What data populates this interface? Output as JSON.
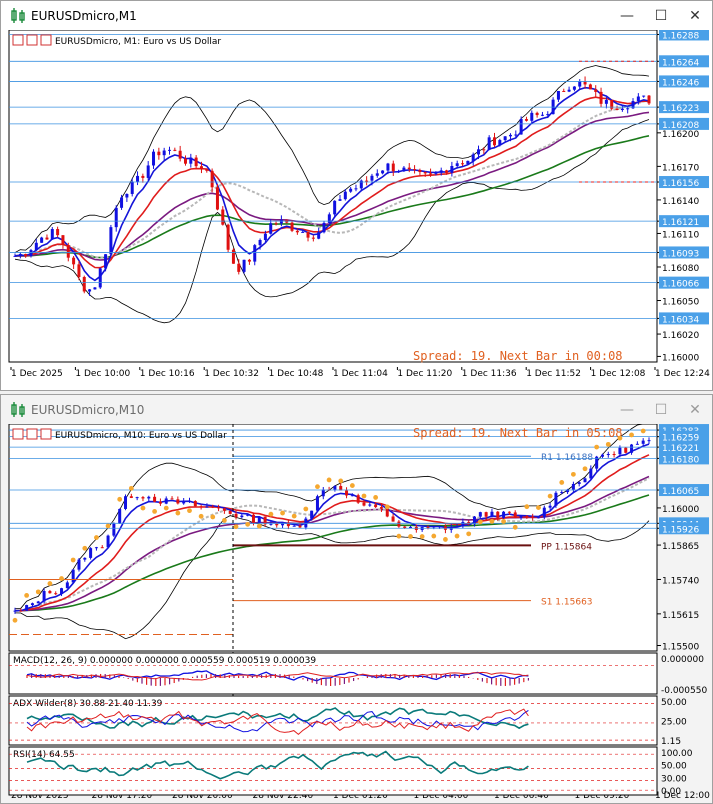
{
  "window1": {
    "title": "EURUSDmicro,M1",
    "header": "EURUSDmicro, M1:  Euro vs US Dollar",
    "spread_text": "Spread: 19. Next Bar in 00:08",
    "price_ticks": [
      "1.16288",
      "1.16264",
      "1.16246",
      "1.16223",
      "1.16208",
      "1.16200",
      "1.16170",
      "1.16156",
      "1.16140",
      "1.16121",
      "1.16110",
      "1.16093",
      "1.16080",
      "1.16066",
      "1.16050",
      "1.16034",
      "1.16020",
      "1.16000"
    ],
    "time_labels": [
      "1 Dec 2025",
      "1 Dec 10:00",
      "1 Dec 10:16",
      "1 Dec 10:32",
      "1 Dec 10:48",
      "1 Dec 11:04",
      "1 Dec 11:20",
      "1 Dec 11:36",
      "1 Dec 11:52",
      "1 Dec 12:08",
      "1 Dec 12:24"
    ]
  },
  "window2": {
    "title": "EURUSDmicro,M10",
    "header": "EURUSDmicro, M10:  Euro vs US Dollar",
    "spread_text": "Spread: 19. Next Bar in 05:08",
    "price_ticks": [
      "1.16283",
      "1.16259",
      "1.16221",
      "1.16180",
      "1.16065",
      "1.16000",
      "1.15944",
      "1.15926",
      "1.15865",
      "1.15740",
      "1.15615",
      "1.15500"
    ],
    "pivot_labels": {
      "r1": "R1 1.16188",
      "pp": "PP 1.15864",
      "s1": "S1 1.15663"
    },
    "macd_label": "MACD(12, 26, 9) 0.000000 0.000000 0.000559 0.000519 0.000039",
    "macd_ticks": [
      "0.000000",
      "-0.000550"
    ],
    "adx_label": "ADX Wilder(8) 30.88 21.40 11.39",
    "adx_ticks": [
      "50.00",
      "25.00",
      "1.15"
    ],
    "rsi_label": "RSI(14) 64.55",
    "rsi_ticks": [
      "100.00",
      "50.00",
      "30.00",
      "0.00"
    ],
    "time_labels": [
      "28 Nov 2025",
      "28 Nov 17:20",
      "28 Nov 20:00",
      "28 Nov 22:40",
      "1 Dec 01:20",
      "1 Dec 04:00",
      "1 Dec 06:40",
      "1 Dec 09:20",
      "1 Dec 12:00"
    ]
  },
  "chart_data": [
    {
      "type": "candlestick",
      "title": "EURUSDmicro, M1:  Euro vs US Dollar",
      "x": [
        "1 Dec 2025",
        "1 Dec 10:00",
        "1 Dec 10:16",
        "1 Dec 10:32",
        "1 Dec 10:48",
        "1 Dec 11:04",
        "1 Dec 11:20",
        "1 Dec 11:36",
        "1 Dec 11:52",
        "1 Dec 12:08",
        "1 Dec 12:24"
      ],
      "series": [
        {
          "name": "",
          "values": [
            1.1609,
            1.1605,
            1.1619,
            1.16055,
            1.16115,
            1.1617,
            1.1616,
            1.1619,
            1.1623,
            1.16235,
            1.1623
          ]
        }
      ],
      "ylim": [
        1.16,
        1.1629
      ],
      "grid": false
    },
    {
      "type": "candlestick",
      "title": "EURUSDmicro, M10:  Euro vs US Dollar",
      "x": [
        "28 Nov 2025",
        "28 Nov 17:20",
        "28 Nov 20:00",
        "28 Nov 22:40",
        "1 Dec 01:20",
        "1 Dec 04:00",
        "1 Dec 06:40",
        "1 Dec 09:20",
        "1 Dec 12:00"
      ],
      "series": [
        {
          "name": "",
          "values": [
            1.156,
            1.158,
            1.16,
            1.159,
            1.1605,
            1.1592,
            1.1593,
            1.1615,
            1.1624
          ]
        }
      ],
      "ylim": [
        1.155,
        1.163
      ],
      "grid": false
    }
  ],
  "colors": {
    "bull_candle": "#1010e0",
    "bear_candle": "#e01010",
    "ma_fast": "#1414d8",
    "ma_mid": "#e01c1c",
    "ma_slow_grey": "#b8b8b8",
    "ma_purple": "#7a1a80",
    "ma_green": "#1a7a1a",
    "bollinger": "#000000",
    "spread_text": "#e06020",
    "psar_dots": "#f5a830",
    "price_label_bg": "#4aa0e8"
  }
}
